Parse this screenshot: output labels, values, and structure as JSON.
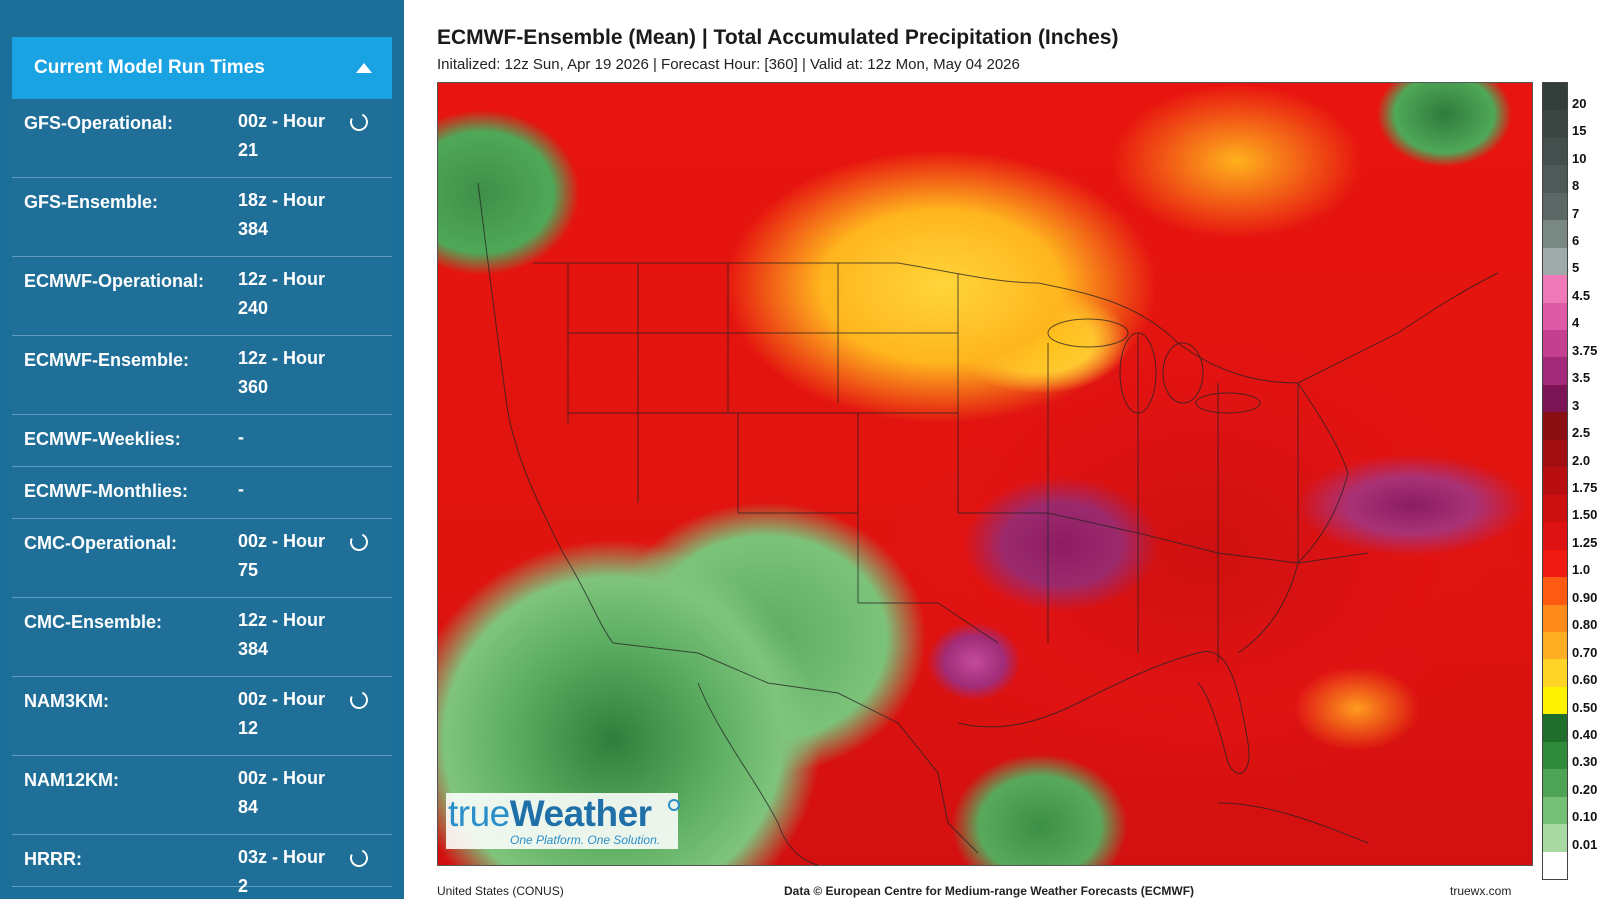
{
  "sidebar": {
    "header": "Current Model Run Times",
    "rows": [
      {
        "name": "GFS-Operational:",
        "line1": "00z - Hour",
        "line2": "21",
        "spinner": true
      },
      {
        "name": "GFS-Ensemble:",
        "line1": "18z - Hour",
        "line2": "384",
        "spinner": false
      },
      {
        "name": "ECMWF-Operational:",
        "line1": "12z - Hour",
        "line2": "240",
        "spinner": false
      },
      {
        "name": "ECMWF-Ensemble:",
        "line1": "12z - Hour",
        "line2": "360",
        "spinner": false
      },
      {
        "name": "ECMWF-Weeklies:",
        "line1": "-",
        "line2": "",
        "spinner": false
      },
      {
        "name": "ECMWF-Monthlies:",
        "line1": "-",
        "line2": "",
        "spinner": false
      },
      {
        "name": "CMC-Operational:",
        "line1": "00z - Hour",
        "line2": "75",
        "spinner": true
      },
      {
        "name": "CMC-Ensemble:",
        "line1": "12z - Hour",
        "line2": "384",
        "spinner": false
      },
      {
        "name": "NAM3KM:",
        "line1": "00z - Hour",
        "line2": "12",
        "spinner": true
      },
      {
        "name": "NAM12KM:",
        "line1": "00z - Hour",
        "line2": "84",
        "spinner": false
      },
      {
        "name": "HRRR:",
        "line1": "03z - Hour 2",
        "line2": "",
        "spinner": true
      }
    ]
  },
  "map": {
    "title": "ECMWF-Ensemble (Mean) | Total Accumulated Precipitation (Inches)",
    "subtitle": "Initalized: 12z Sun, Apr 19 2026  |  Forecast Hour: [360]  |  Valid at: 12z Mon, May 04 2026",
    "logo_text_a": "true",
    "logo_text_b": "Weather",
    "logo_tagline": "One Platform. One Solution.",
    "footer_left": "United States (CONUS)",
    "footer_center": "Data © European Centre for Medium-range Weather Forecasts (ECMWF)",
    "footer_right": "truewx.com"
  },
  "legend": [
    {
      "label": "20",
      "color": "#333d3a"
    },
    {
      "label": "15",
      "color": "#3b4643"
    },
    {
      "label": "10",
      "color": "#434f4c"
    },
    {
      "label": "8",
      "color": "#4e5a57"
    },
    {
      "label": "7",
      "color": "#5b6865"
    },
    {
      "label": "6",
      "color": "#7a8884"
    },
    {
      "label": "5",
      "color": "#9fabaa"
    },
    {
      "label": "4.5",
      "color": "#f07ab8"
    },
    {
      "label": "4",
      "color": "#dc5aa6"
    },
    {
      "label": "3.75",
      "color": "#c2408f"
    },
    {
      "label": "3.5",
      "color": "#a32a7a"
    },
    {
      "label": "3",
      "color": "#7b1556"
    },
    {
      "label": "2.5",
      "color": "#8a0f12"
    },
    {
      "label": "2.0",
      "color": "#a30e12"
    },
    {
      "label": "1.75",
      "color": "#b80e12"
    },
    {
      "label": "1.50",
      "color": "#cc1012"
    },
    {
      "label": "1.25",
      "color": "#de1212"
    },
    {
      "label": "1.0",
      "color": "#f01a12"
    },
    {
      "label": "0.90",
      "color": "#ff5a14"
    },
    {
      "label": "0.80",
      "color": "#ff8a1c"
    },
    {
      "label": "0.70",
      "color": "#ffad22"
    },
    {
      "label": "0.60",
      "color": "#ffd426"
    },
    {
      "label": "0.50",
      "color": "#fff200"
    },
    {
      "label": "0.40",
      "color": "#1f6e2c"
    },
    {
      "label": "0.30",
      "color": "#2f8a3c"
    },
    {
      "label": "0.20",
      "color": "#4da456"
    },
    {
      "label": "0.10",
      "color": "#76bf76"
    },
    {
      "label": "0.01",
      "color": "#a9d9a3"
    },
    {
      "label": "",
      "color": "#ffffff"
    }
  ]
}
